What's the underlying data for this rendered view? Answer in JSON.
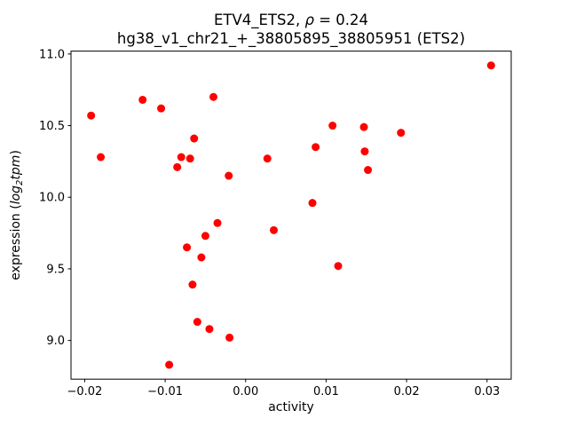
{
  "chart_data": {
    "type": "scatter",
    "title": {
      "line1_prefix": "ETV4_ETS2, ",
      "line1_rho": "ρ",
      "line1_suffix": " = 0.24",
      "line2": "hg38_v1_chr21_+_38805895_38805951 (ETS2)"
    },
    "xlabel": "activity",
    "ylabel": {
      "prefix": "expression (",
      "log": "log",
      "sub": "2",
      "tpm": "tpm",
      "suffix": ")"
    },
    "marker_color": "#ff0000",
    "grid": false,
    "legend": "none",
    "xlim": [
      -0.0217,
      0.033
    ],
    "ylim": [
      8.73,
      11.02
    ],
    "x_ticks": {
      "values": [
        -0.02,
        -0.01,
        0.0,
        0.01,
        0.02,
        0.03
      ],
      "labels": [
        "−0.02",
        "−0.01",
        "0.00",
        "0.01",
        "0.02",
        "0.03"
      ]
    },
    "y_ticks": {
      "values": [
        9.0,
        9.5,
        10.0,
        10.5,
        11.0
      ],
      "labels": [
        "9.0",
        "9.5",
        "10.0",
        "10.5",
        "11.0"
      ]
    },
    "points": [
      [
        -0.0192,
        10.57
      ],
      [
        -0.018,
        10.28
      ],
      [
        -0.0128,
        10.68
      ],
      [
        -0.0105,
        10.62
      ],
      [
        -0.0095,
        8.83
      ],
      [
        -0.0085,
        10.21
      ],
      [
        -0.008,
        10.28
      ],
      [
        -0.0073,
        9.65
      ],
      [
        -0.0069,
        10.27
      ],
      [
        -0.0066,
        9.39
      ],
      [
        -0.0064,
        10.41
      ],
      [
        -0.006,
        9.13
      ],
      [
        -0.0055,
        9.58
      ],
      [
        -0.005,
        9.73
      ],
      [
        -0.0045,
        9.08
      ],
      [
        -0.004,
        10.7
      ],
      [
        -0.0035,
        9.82
      ],
      [
        -0.0021,
        10.15
      ],
      [
        -0.002,
        9.02
      ],
      [
        0.0027,
        10.27
      ],
      [
        0.0035,
        9.77
      ],
      [
        0.0083,
        9.96
      ],
      [
        0.0087,
        10.35
      ],
      [
        0.0108,
        10.5
      ],
      [
        0.0115,
        9.52
      ],
      [
        0.0147,
        10.49
      ],
      [
        0.0148,
        10.32
      ],
      [
        0.0152,
        10.19
      ],
      [
        0.0193,
        10.45
      ],
      [
        0.0305,
        10.92
      ]
    ]
  }
}
